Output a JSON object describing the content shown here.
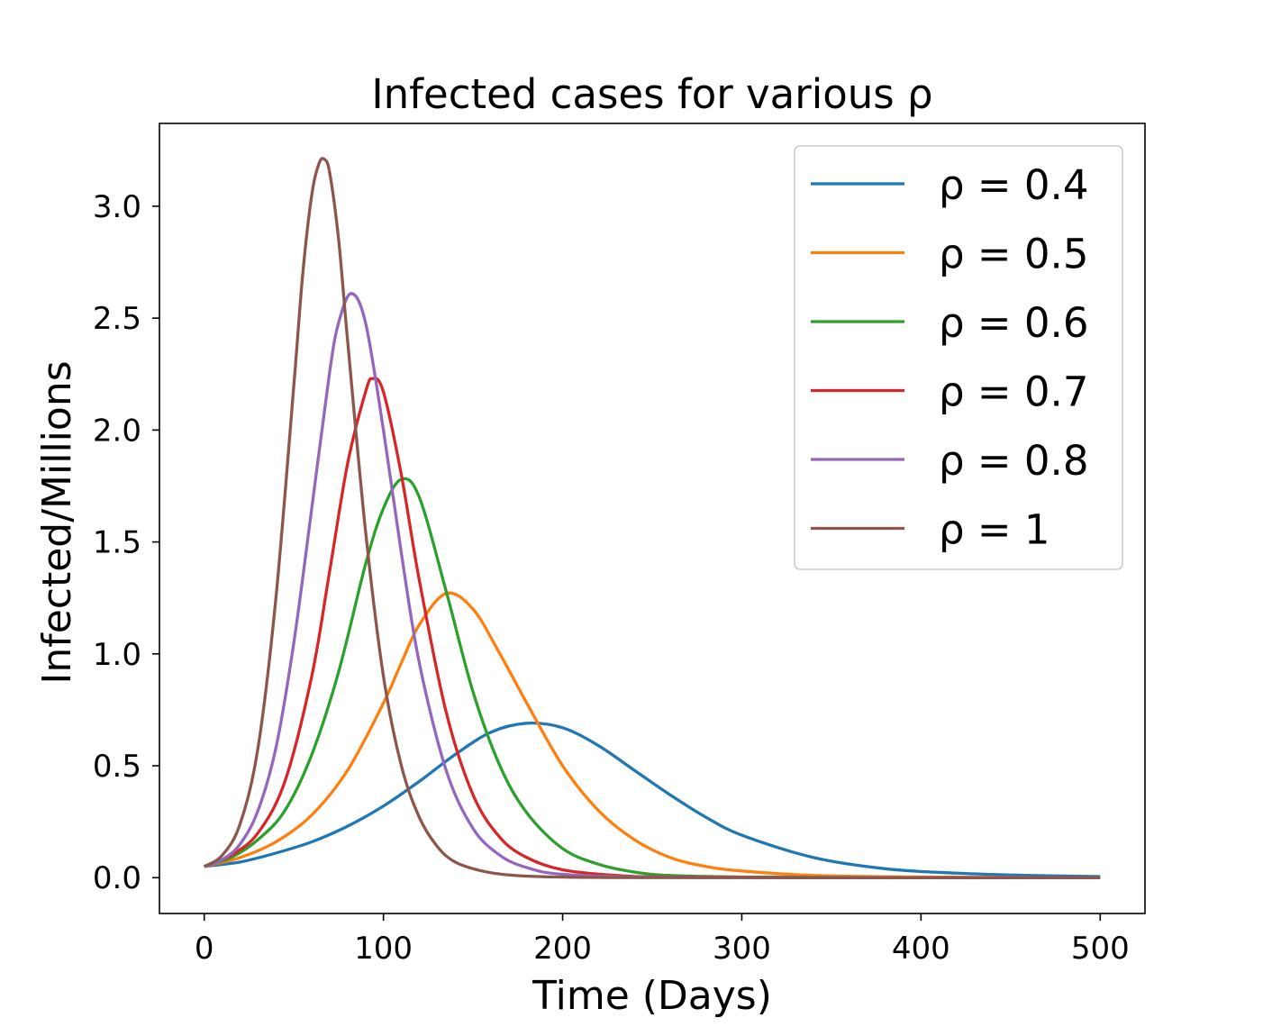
{
  "chart_data": {
    "type": "line",
    "title": "Infected cases for various ρ",
    "xlabel": "Time (Days)",
    "ylabel": "Infected/Millions",
    "xlim": [
      -25,
      525
    ],
    "ylim": [
      -0.16,
      3.37
    ],
    "xticks": [
      0,
      100,
      200,
      300,
      400,
      500
    ],
    "xtick_labels": [
      "0",
      "100",
      "200",
      "300",
      "400",
      "500"
    ],
    "yticks": [
      0.0,
      0.5,
      1.0,
      1.5,
      2.0,
      2.5,
      3.0
    ],
    "ytick_labels": [
      "0.0",
      "0.5",
      "1.0",
      "1.5",
      "2.0",
      "2.5",
      "3.0"
    ],
    "grid": false,
    "legend": {
      "position": "top-right"
    },
    "series": [
      {
        "name": "ρ = 0.4",
        "color": "#1f77b4",
        "x": [
          0,
          20,
          40,
          60,
          80,
          100,
          120,
          140,
          160,
          180,
          200,
          220,
          240,
          260,
          280,
          300,
          340,
          380,
          420,
          460,
          500
        ],
        "y": [
          0.05,
          0.07,
          0.11,
          0.16,
          0.23,
          0.32,
          0.43,
          0.55,
          0.65,
          0.69,
          0.67,
          0.59,
          0.48,
          0.37,
          0.27,
          0.19,
          0.09,
          0.04,
          0.02,
          0.01,
          0.005
        ]
      },
      {
        "name": "ρ = 0.5",
        "color": "#ff7f0e",
        "x": [
          0,
          20,
          40,
          60,
          80,
          100,
          110,
          120,
          135,
          150,
          165,
          180,
          200,
          220,
          240,
          260,
          280,
          300,
          340,
          400,
          500
        ],
        "y": [
          0.05,
          0.09,
          0.16,
          0.28,
          0.48,
          0.78,
          0.96,
          1.13,
          1.27,
          1.2,
          1.0,
          0.78,
          0.5,
          0.3,
          0.17,
          0.09,
          0.05,
          0.03,
          0.01,
          0.003,
          0.0
        ]
      },
      {
        "name": "ρ = 0.6",
        "color": "#2ca02c",
        "x": [
          0,
          15,
          30,
          45,
          60,
          75,
          90,
          100,
          110,
          120,
          135,
          150,
          165,
          180,
          200,
          220,
          240,
          260,
          300,
          400,
          500
        ],
        "y": [
          0.05,
          0.09,
          0.17,
          0.3,
          0.55,
          0.92,
          1.4,
          1.65,
          1.78,
          1.7,
          1.28,
          0.83,
          0.5,
          0.29,
          0.13,
          0.06,
          0.025,
          0.01,
          0.003,
          0.0,
          0.0
        ]
      },
      {
        "name": "ρ = 0.7",
        "color": "#d62728",
        "x": [
          0,
          15,
          30,
          45,
          60,
          70,
          80,
          90,
          94,
          100,
          110,
          120,
          135,
          150,
          165,
          180,
          200,
          230,
          260,
          350,
          500
        ],
        "y": [
          0.05,
          0.1,
          0.2,
          0.43,
          0.9,
          1.37,
          1.85,
          2.17,
          2.23,
          2.17,
          1.8,
          1.33,
          0.74,
          0.37,
          0.18,
          0.09,
          0.035,
          0.01,
          0.003,
          0.0,
          0.0
        ]
      },
      {
        "name": "ρ = 0.8",
        "color": "#9467bd",
        "x": [
          0,
          10,
          20,
          30,
          40,
          50,
          60,
          70,
          75,
          82,
          90,
          100,
          110,
          120,
          135,
          150,
          165,
          180,
          200,
          250,
          350,
          500
        ],
        "y": [
          0.05,
          0.08,
          0.15,
          0.3,
          0.58,
          1.05,
          1.65,
          2.26,
          2.48,
          2.61,
          2.48,
          2.0,
          1.45,
          0.96,
          0.48,
          0.22,
          0.1,
          0.045,
          0.015,
          0.002,
          0.0,
          0.0
        ]
      },
      {
        "name": "ρ = 1",
        "color": "#8c564b",
        "x": [
          0,
          10,
          20,
          30,
          40,
          50,
          55,
          60,
          64,
          67,
          70,
          75,
          80,
          90,
          100,
          110,
          120,
          130,
          140,
          155,
          170,
          190,
          220,
          300,
          500
        ],
        "y": [
          0.05,
          0.1,
          0.24,
          0.58,
          1.25,
          2.2,
          2.7,
          3.05,
          3.19,
          3.21,
          3.15,
          2.85,
          2.4,
          1.55,
          0.9,
          0.5,
          0.27,
          0.14,
          0.07,
          0.03,
          0.012,
          0.004,
          0.001,
          0.0,
          0.0
        ]
      }
    ]
  }
}
